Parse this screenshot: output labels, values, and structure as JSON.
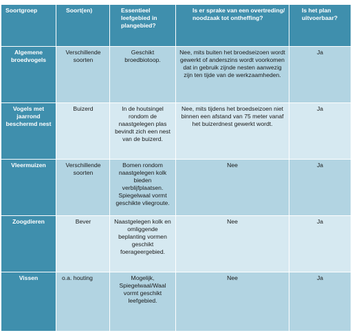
{
  "table": {
    "headers": {
      "group": "Soortgroep",
      "species": "Soort(en)",
      "habitat": "Essentieel leefgebied in plangebied?",
      "violation": "Is er sprake van een overtreding/ noodzaak tot ontheffing?",
      "feasible": "Is het plan uitvoerbaar?"
    },
    "rows": [
      {
        "group": "Algemene broedvogels",
        "species": "Verschillende soorten",
        "habitat": "Geschikt broedbiotoop.",
        "violation": "Nee, mits buiten het broedseizoen wordt gewerkt of anderszins wordt voorkomen dat in gebruik zijnde nesten aanwezig zijn ten tijde van de werkzaamheden.",
        "feasible": "Ja"
      },
      {
        "group": "Vogels met jaarrond beschermd nest",
        "species": "Buizerd",
        "habitat": "In de houtsingel rondom de naastgelegen plas bevindt zich een nest van de buizerd.",
        "violation": "Nee, mits tijdens het broedseizoen niet binnen een afstand van 75 meter vanaf het buizerdnest gewerkt wordt.",
        "feasible": "Ja"
      },
      {
        "group": "Vleermuizen",
        "species": "Verschillende soorten",
        "habitat": "Bomen rondom naastgelegen kolk bieden verblijfplaatsen. Spiegelwaal vormt geschikte vliegroute.",
        "violation": "Nee",
        "feasible": "Ja"
      },
      {
        "group": "Zoogdieren",
        "species": "Bever",
        "habitat": "Naastgelegen kolk en omliggende beplanting vormen geschikt foerageergebied.",
        "violation": "Nee",
        "feasible": "Ja"
      },
      {
        "group": "Vissen",
        "species": "o.a. houting",
        "habitat": "Mogelijk, Spiegelwaal/Waal vormt geschikt leefgebied.",
        "violation": "Nee",
        "feasible": "Ja"
      }
    ]
  }
}
